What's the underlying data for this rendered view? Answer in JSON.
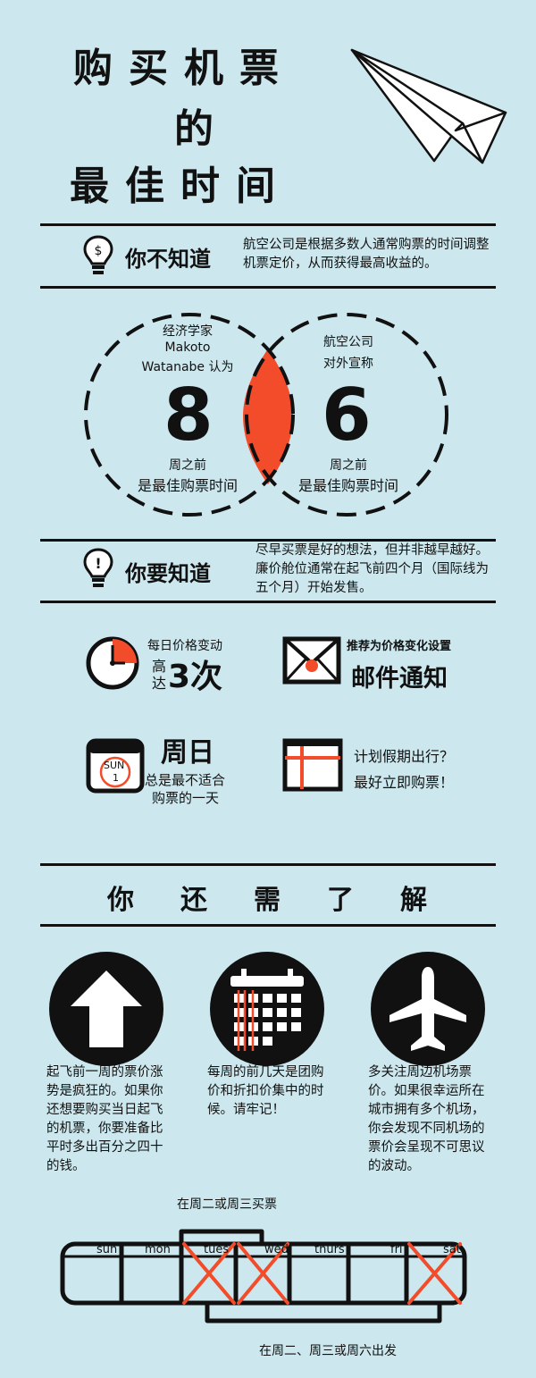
{
  "title": {
    "line1": "购买机票",
    "line2": "的",
    "line3": "最佳时间"
  },
  "intro": {
    "heading": "你不知道",
    "text": "航空公司是根据多数人通常购票的时间调整机票定价，从而获得最高收益的。"
  },
  "comparison": {
    "left": {
      "source1": "经济学家",
      "source2": "Makoto",
      "source3": "Watanabe 认为",
      "number": "8",
      "unit": "周之前",
      "conclusion": "是最佳购票时间"
    },
    "right": {
      "source1": "航空公司",
      "source2": "对外宣称",
      "number": "6",
      "unit": "周之前",
      "conclusion": "是最佳购票时间"
    }
  },
  "know": {
    "heading": "你要知道",
    "text": "尽早买票是好的想法，但并非越早越好。廉价舱位通常在起飞前四个月（国际线为五个月）开始发售。"
  },
  "tips": {
    "price_change": {
      "line1": "每日价格变动",
      "line2a": "高",
      "line2b": "达",
      "big": "3次"
    },
    "email": {
      "small": "推荐为价格变化设置",
      "big": "邮件通知"
    },
    "sunday": {
      "big": "周日",
      "line1": "总是最不适合",
      "line2": "购票的一天",
      "cal_day": "SUN",
      "cal_num": "1"
    },
    "holiday": {
      "line1": "计划假期出行？",
      "line2": "最好立即购票！"
    }
  },
  "more": {
    "heading": "你还需了解"
  },
  "facts": [
    {
      "text": "起飞前一周的票价涨势是疯狂的。如果你还想要购买当日起飞的机票，你要准备比平时多出百分之四十的钱。"
    },
    {
      "text": "每周的前几天是团购价和折扣价集中的时候。请牢记！"
    },
    {
      "text": "多关注周边机场票价。如果很幸运所在城市拥有多个机场，你会发现不同机场的票价会呈现不可思议的波动。"
    }
  ],
  "week": {
    "buy_label": "在周二或周三买票",
    "depart_label": "在周二、周三或周六出发",
    "days": [
      "sun",
      "mon",
      "tues",
      "wed",
      "thurs",
      "fri",
      "sat"
    ]
  },
  "colors": {
    "background": "#cce8ee",
    "accent": "#f24c2a",
    "ink": "#111111"
  }
}
